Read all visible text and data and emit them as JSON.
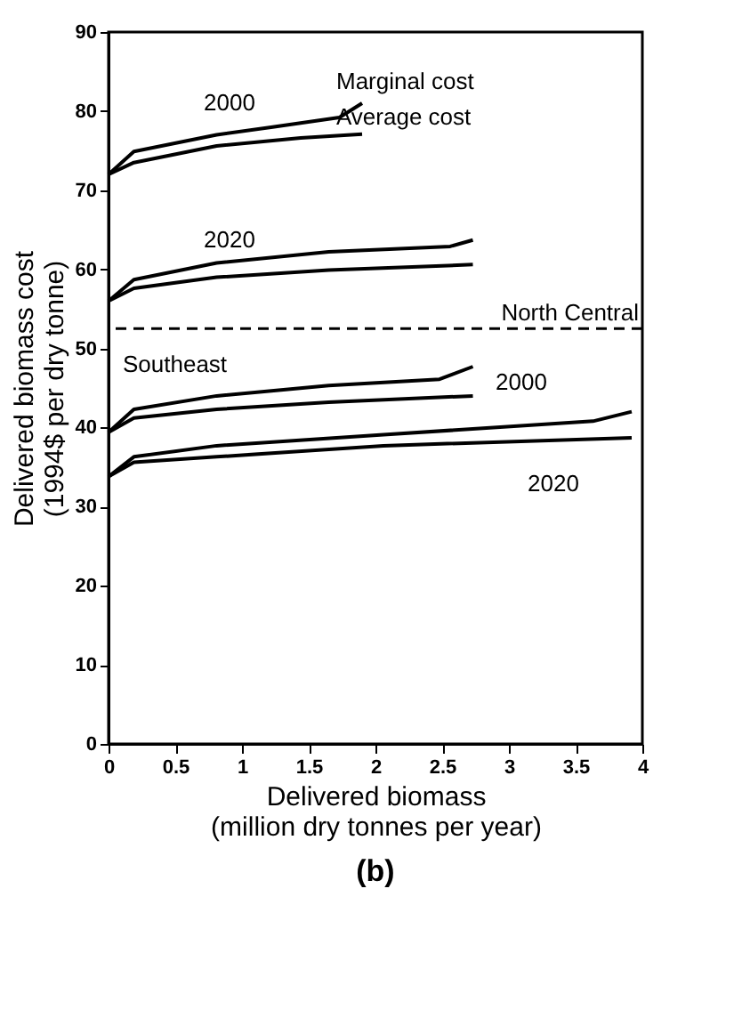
{
  "chart_data": {
    "type": "line",
    "title": "(b)",
    "xlabel": "Delivered biomass\n(million dry tonnes per year)",
    "ylabel": "Delivered biomass cost\n(1994$ per dry tonne)",
    "xlim": [
      0,
      4
    ],
    "xticks": [
      0,
      0.5,
      1,
      1.5,
      2,
      2.5,
      3,
      3.5,
      4
    ],
    "ylim": [
      0,
      90
    ],
    "yticks": [
      0,
      10,
      20,
      30,
      40,
      50,
      60,
      70,
      80,
      90
    ],
    "grid": false,
    "marker": "none",
    "line_style": "solid",
    "series": [
      {
        "color": "#000000",
        "x": [
          0,
          0.19,
          0.81,
          1.23,
          1.73,
          1.9
        ],
        "values": [
          72,
          74.9,
          77,
          78,
          79.2,
          81
        ]
      },
      {
        "color": "#000000",
        "x": [
          0,
          0.19,
          0.81,
          1.44,
          1.9
        ],
        "values": [
          72,
          73.5,
          75.6,
          76.6,
          77.1
        ]
      },
      {
        "color": "#000000",
        "x": [
          0,
          0.19,
          0.81,
          1.65,
          2.56,
          2.73
        ],
        "values": [
          56,
          58.7,
          60.8,
          62.2,
          62.9,
          63.7
        ]
      },
      {
        "color": "#000000",
        "x": [
          0,
          0.19,
          0.81,
          1.65,
          2.73
        ],
        "values": [
          56,
          57.6,
          59,
          59.9,
          60.6
        ]
      },
      {
        "color": "#000000",
        "x": [
          0,
          0.19,
          0.81,
          1.65,
          2.48,
          2.73
        ],
        "values": [
          39.4,
          42.3,
          44,
          45.3,
          46.1,
          47.7
        ]
      },
      {
        "color": "#000000",
        "x": [
          0,
          0.19,
          0.81,
          1.65,
          2.73
        ],
        "values": [
          39.4,
          41.2,
          42.3,
          43.2,
          44
        ]
      },
      {
        "color": "#000000",
        "x": [
          0,
          0.19,
          0.81,
          2.06,
          3.63,
          3.92
        ],
        "values": [
          33.8,
          36.3,
          37.7,
          39.1,
          40.8,
          42
        ]
      },
      {
        "color": "#000000",
        "x": [
          0,
          0.19,
          0.81,
          2.06,
          3.92
        ],
        "values": [
          33.8,
          35.6,
          36.3,
          37.7,
          38.7
        ]
      }
    ],
    "ref_lines": [
      {
        "axis": "y",
        "value": 52.5,
        "line_style": "dashed",
        "color": "#000000"
      }
    ],
    "annotations": [
      "2000",
      "2020",
      "Marginal cost",
      "Average cost",
      "North Central",
      "Southeast",
      "2000",
      "2020"
    ]
  }
}
